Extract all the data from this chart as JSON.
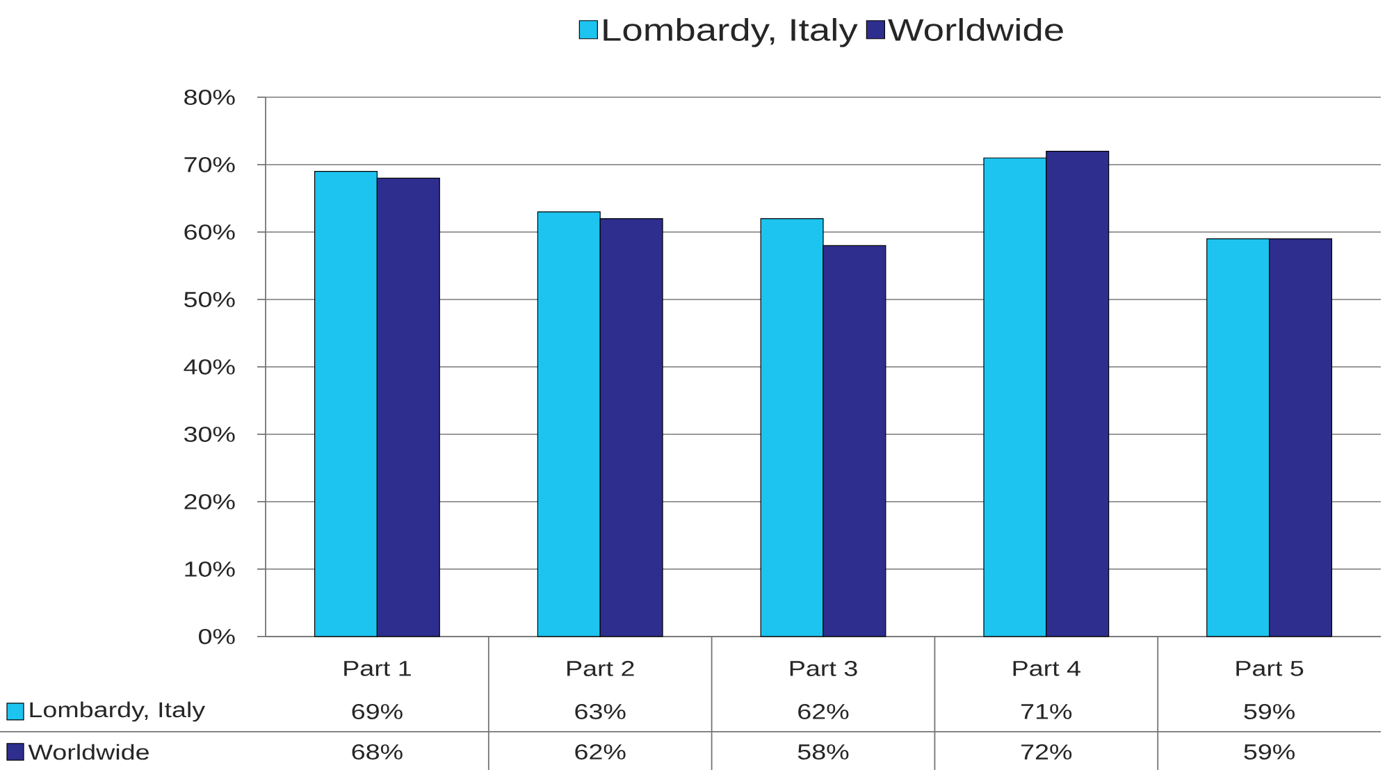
{
  "chart_data": {
    "type": "bar",
    "categories": [
      "Part 1",
      "Part 2",
      "Part 3",
      "Part 4",
      "Part 5"
    ],
    "series": [
      {
        "name": "Lombardy, Italy",
        "color": "#1ec4f0",
        "values": [
          69,
          63,
          62,
          71,
          59
        ],
        "value_labels": [
          "69%",
          "63%",
          "62%",
          "71%",
          "59%"
        ]
      },
      {
        "name": "Worldwide",
        "color": "#2e2e8e",
        "values": [
          68,
          62,
          58,
          72,
          59
        ],
        "value_labels": [
          "68%",
          "62%",
          "58%",
          "72%",
          "59%"
        ]
      }
    ],
    "ylim": [
      0,
      80
    ],
    "yticks": [
      {
        "value": 0,
        "label": "0%"
      },
      {
        "value": 10,
        "label": "10%"
      },
      {
        "value": 20,
        "label": "20%"
      },
      {
        "value": 30,
        "label": "30%"
      },
      {
        "value": 40,
        "label": "40%"
      },
      {
        "value": 50,
        "label": "50%"
      },
      {
        "value": 60,
        "label": "60%"
      },
      {
        "value": 70,
        "label": "70%"
      },
      {
        "value": 80,
        "label": "80%"
      }
    ],
    "grid": "y",
    "legend": "top"
  }
}
